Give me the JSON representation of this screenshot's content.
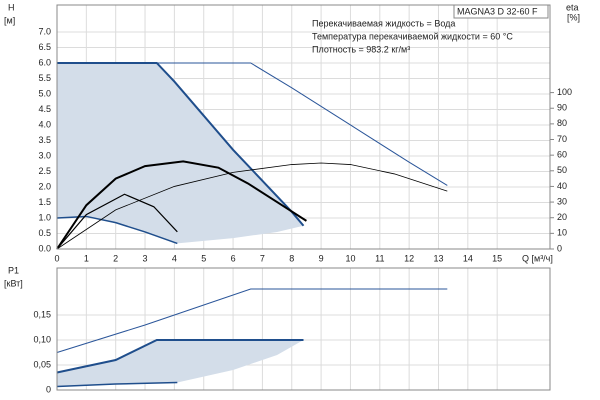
{
  "chart_data": [
    {
      "type": "line",
      "title": "MAGNA3 D 32-60 F",
      "annotations": [
        "Перекачиваемая жидкость = Вода",
        "Температура перекачиваемой жидкости = 60 °C",
        "Плотность = 983.2 кг/м³"
      ],
      "ylabel": "H",
      "yunit": "[м]",
      "y2label": "eta",
      "y2unit": "[%]",
      "xlabel": "Q [м³/ч]",
      "xlim": [
        0,
        16.8
      ],
      "xticks": [
        0,
        1,
        2,
        3,
        4,
        5,
        6,
        7,
        8,
        9,
        10,
        11,
        12,
        13,
        14,
        15
      ],
      "ylim": [
        0,
        7.87
      ],
      "yticks": [
        {
          "value": 0,
          "label": "0.0"
        },
        0.5,
        {
          "value": 1,
          "label": "1.0"
        },
        1.5,
        {
          "value": 2,
          "label": "2.0"
        },
        2.5,
        {
          "value": 3,
          "label": "3.0"
        },
        3.5,
        {
          "value": 4,
          "label": "4.0"
        },
        4.5,
        {
          "value": 5,
          "label": "5.0"
        },
        5.5,
        {
          "value": 6,
          "label": "6.0"
        },
        6.5,
        {
          "value": 7,
          "label": "7.0"
        }
      ],
      "y2lim": [
        0,
        156
      ],
      "y2ticks": [
        0,
        10,
        20,
        30,
        40,
        50,
        60,
        70,
        80,
        90,
        100
      ],
      "grid": true,
      "area": {
        "color": "#d3dde9",
        "x": [
          0,
          3.4,
          4,
          5,
          6,
          7,
          8,
          8.4,
          7.5,
          6,
          4.1,
          3,
          2,
          1,
          0
        ],
        "values": [
          6,
          6,
          5.4,
          4.3,
          3.2,
          2.2,
          1.2,
          0.75,
          0.55,
          0.35,
          0.18,
          0.55,
          0.85,
          1.05,
          1.0
        ]
      },
      "series": [
        {
          "color": "#2a5599",
          "width": 1,
          "x": [
            0,
            6.6,
            8,
            10,
            12,
            13.3
          ],
          "values": [
            6.0,
            6.0,
            5.2,
            4.0,
            2.8,
            2.05
          ]
        },
        {
          "color": "#1f4e8c",
          "width": 2,
          "x": [
            0,
            3.4,
            4,
            5,
            6,
            7,
            8,
            8.4
          ],
          "values": [
            6.0,
            6.0,
            5.4,
            4.3,
            3.2,
            2.2,
            1.2,
            0.75
          ]
        },
        {
          "color": "#1f4e8c",
          "width": 1.5,
          "x": [
            0,
            1,
            2,
            3,
            4.1
          ],
          "values": [
            1.0,
            1.05,
            0.85,
            0.55,
            0.18
          ]
        },
        {
          "color": "#000000",
          "width": 2,
          "axis": "y2",
          "x": [
            0,
            1,
            2,
            3,
            4.3,
            5.5,
            6.5,
            7.5,
            8.5
          ],
          "values": [
            0,
            28,
            45,
            53,
            56,
            52,
            42,
            30,
            18
          ]
        },
        {
          "color": "#000000",
          "width": 0.8,
          "axis": "y2",
          "x": [
            0,
            2,
            4,
            6,
            8,
            9,
            10,
            11.5,
            13.3
          ],
          "values": [
            0,
            25,
            40,
            49,
            54,
            55,
            54,
            48,
            37
          ]
        },
        {
          "color": "#000000",
          "width": 1.2,
          "axis": "y2",
          "x": [
            0,
            1,
            2.3,
            3.3,
            4.1
          ],
          "values": [
            0,
            22,
            35,
            27,
            11
          ]
        }
      ]
    },
    {
      "type": "line",
      "ylabel": "P1",
      "yunit": "[кВт]",
      "xlim": [
        0,
        16.8
      ],
      "xticks": [
        0,
        1,
        2,
        3,
        4,
        5,
        6,
        7,
        8,
        9,
        10,
        11,
        12,
        13,
        14,
        15
      ],
      "ylim": [
        0,
        0.244
      ],
      "yticks": [
        0,
        {
          "value": 0.05,
          "label": "0,05"
        },
        {
          "value": 0.1,
          "label": "0,10"
        },
        {
          "value": 0.15,
          "label": "0,15"
        }
      ],
      "grid": true,
      "area": {
        "color": "#d3dde9",
        "x": [
          0,
          2,
          3.4,
          8.4,
          7.5,
          6,
          4.1,
          2,
          0
        ],
        "values": [
          0.035,
          0.06,
          0.1,
          0.1,
          0.07,
          0.04,
          0.015,
          0.012,
          0.007
        ]
      },
      "series": [
        {
          "color": "#2a5599",
          "width": 1,
          "x": [
            0,
            3,
            6.6,
            13.3
          ],
          "values": [
            0.075,
            0.13,
            0.202,
            0.202
          ]
        },
        {
          "color": "#1f4e8c",
          "width": 2,
          "x": [
            0,
            2,
            3.4,
            8.4
          ],
          "values": [
            0.035,
            0.06,
            0.1,
            0.1
          ]
        },
        {
          "color": "#1f4e8c",
          "width": 1.5,
          "x": [
            0,
            2,
            4.1
          ],
          "values": [
            0.007,
            0.012,
            0.015
          ]
        }
      ]
    }
  ]
}
